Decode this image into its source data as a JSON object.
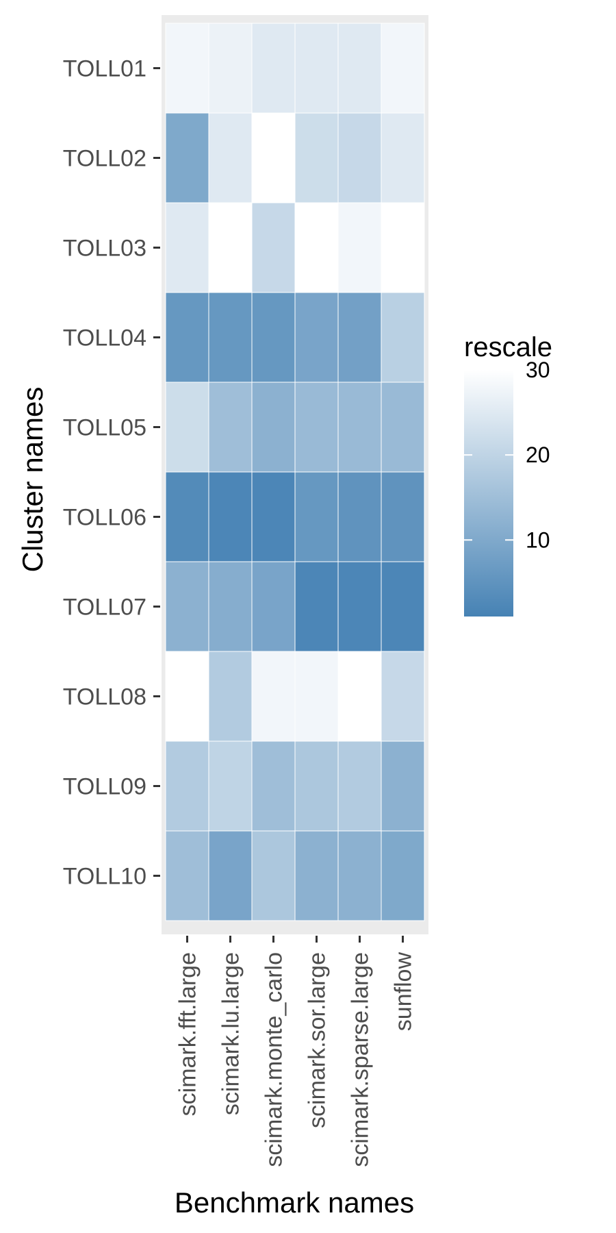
{
  "chart_data": {
    "type": "heatmap",
    "xlabel": "Benchmark names",
    "ylabel": "Cluster names",
    "x_categories": [
      "scimark.fft.large",
      "scimark.lu.large",
      "scimark.monte_carlo",
      "scimark.sor.large",
      "scimark.sparse.large",
      "sunflow"
    ],
    "y_categories": [
      "TOLL01",
      "TOLL02",
      "TOLL03",
      "TOLL04",
      "TOLL05",
      "TOLL06",
      "TOLL07",
      "TOLL08",
      "TOLL09",
      "TOLL10"
    ],
    "values": [
      [
        28,
        27,
        25,
        25,
        25,
        28
      ],
      [
        10,
        25,
        30,
        22,
        21,
        25
      ],
      [
        25,
        30,
        21,
        30,
        28,
        30
      ],
      [
        6,
        6,
        6,
        9,
        8,
        19
      ],
      [
        22,
        15,
        12,
        14,
        14,
        14
      ],
      [
        3,
        2,
        2,
        6,
        5,
        5
      ],
      [
        12,
        11,
        9,
        2,
        2,
        2
      ],
      [
        30,
        18,
        28,
        28,
        30,
        21
      ],
      [
        18,
        20,
        15,
        17,
        18,
        12
      ],
      [
        15,
        9,
        17,
        12,
        12,
        10
      ]
    ],
    "legend": {
      "title": "rescale",
      "ticks": [
        10,
        20,
        30
      ],
      "range": [
        1,
        30
      ],
      "low_color": "#4682b4",
      "high_color": "#ffffff",
      "placement": "right"
    },
    "panel_background": "#ebebeb",
    "grid": true
  }
}
